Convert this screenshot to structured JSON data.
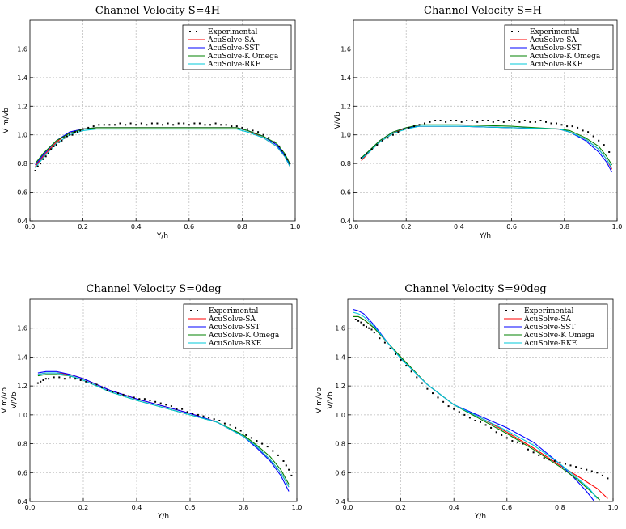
{
  "chart_data": [
    {
      "type": "line",
      "title": "Channel Velocity S=4H",
      "xlabel": "Y/h",
      "ylabel": "V m/vb",
      "xlim": [
        0,
        1.0
      ],
      "ylim": [
        0.4,
        1.8
      ],
      "xticks": [
        "0.0",
        "0.2",
        "0.4",
        "0.6",
        "0.8",
        "1.0"
      ],
      "yticks": [
        "0.4",
        "0.6",
        "0.8",
        "1.0",
        "1.2",
        "1.4",
        "1.6"
      ],
      "grid": true,
      "legend_position": "top-right",
      "experimental": {
        "name": "Experimental",
        "x": [
          0.02,
          0.03,
          0.04,
          0.05,
          0.06,
          0.07,
          0.08,
          0.09,
          0.1,
          0.11,
          0.12,
          0.13,
          0.14,
          0.15,
          0.16,
          0.17,
          0.18,
          0.19,
          0.2,
          0.22,
          0.24,
          0.26,
          0.28,
          0.3,
          0.32,
          0.34,
          0.36,
          0.38,
          0.4,
          0.42,
          0.44,
          0.46,
          0.48,
          0.5,
          0.52,
          0.54,
          0.56,
          0.58,
          0.6,
          0.62,
          0.64,
          0.66,
          0.68,
          0.7,
          0.72,
          0.74,
          0.76,
          0.78,
          0.8,
          0.82,
          0.84,
          0.86,
          0.88,
          0.9,
          0.92,
          0.94,
          0.95,
          0.96,
          0.97,
          0.98
        ],
        "y": [
          0.75,
          0.78,
          0.8,
          0.83,
          0.85,
          0.87,
          0.9,
          0.92,
          0.93,
          0.95,
          0.96,
          0.98,
          0.99,
          1.0,
          1.0,
          1.02,
          1.02,
          1.03,
          1.04,
          1.05,
          1.06,
          1.07,
          1.07,
          1.07,
          1.07,
          1.08,
          1.07,
          1.08,
          1.07,
          1.08,
          1.07,
          1.08,
          1.08,
          1.07,
          1.08,
          1.07,
          1.08,
          1.08,
          1.07,
          1.08,
          1.08,
          1.07,
          1.07,
          1.08,
          1.07,
          1.07,
          1.06,
          1.06,
          1.05,
          1.04,
          1.03,
          1.02,
          1.0,
          0.98,
          0.95,
          0.92,
          0.89,
          0.86,
          0.83,
          0.8
        ]
      },
      "series": [
        {
          "name": "AcuSolve-SA",
          "color": "#ff0000",
          "x": [
            0.02,
            0.05,
            0.1,
            0.15,
            0.2,
            0.25,
            0.4,
            0.6,
            0.78,
            0.82,
            0.88,
            0.93,
            0.96,
            0.98
          ],
          "y": [
            0.78,
            0.85,
            0.95,
            1.02,
            1.04,
            1.05,
            1.05,
            1.05,
            1.05,
            1.03,
            0.98,
            0.92,
            0.85,
            0.78
          ]
        },
        {
          "name": "AcuSolve-SST",
          "color": "#0000ff",
          "x": [
            0.02,
            0.05,
            0.1,
            0.15,
            0.2,
            0.25,
            0.4,
            0.6,
            0.78,
            0.82,
            0.88,
            0.93,
            0.96,
            0.98
          ],
          "y": [
            0.79,
            0.86,
            0.96,
            1.02,
            1.04,
            1.05,
            1.05,
            1.05,
            1.05,
            1.03,
            0.99,
            0.93,
            0.86,
            0.79
          ]
        },
        {
          "name": "AcuSolve-K Omega",
          "color": "#008000",
          "x": [
            0.02,
            0.05,
            0.1,
            0.15,
            0.2,
            0.25,
            0.4,
            0.6,
            0.78,
            0.82,
            0.88,
            0.93,
            0.96,
            0.98
          ],
          "y": [
            0.8,
            0.87,
            0.96,
            1.01,
            1.04,
            1.05,
            1.05,
            1.05,
            1.05,
            1.03,
            0.99,
            0.94,
            0.87,
            0.8
          ]
        },
        {
          "name": "AcuSolve-RKE",
          "color": "#00c8d8",
          "x": [
            0.02,
            0.05,
            0.1,
            0.15,
            0.2,
            0.25,
            0.4,
            0.6,
            0.78,
            0.82,
            0.88,
            0.93,
            0.96,
            0.98
          ],
          "y": [
            0.77,
            0.84,
            0.94,
            1.0,
            1.03,
            1.04,
            1.04,
            1.04,
            1.04,
            1.02,
            0.98,
            0.92,
            0.85,
            0.78
          ]
        }
      ]
    },
    {
      "type": "line",
      "title": "Channel Velocity S=H",
      "xlabel": "Y/h",
      "ylabel": "V/Vb",
      "xlim": [
        0,
        1.0
      ],
      "ylim": [
        0.4,
        1.8
      ],
      "xticks": [
        "0.0",
        "0.2",
        "0.4",
        "0.6",
        "0.8",
        "1.0"
      ],
      "yticks": [
        "0.4",
        "0.6",
        "0.8",
        "1.0",
        "1.2",
        "1.4",
        "1.6"
      ],
      "grid": true,
      "legend_position": "top-right",
      "experimental": {
        "name": "Experimental",
        "x": [
          0.03,
          0.05,
          0.07,
          0.09,
          0.11,
          0.13,
          0.15,
          0.17,
          0.19,
          0.21,
          0.23,
          0.25,
          0.27,
          0.29,
          0.31,
          0.33,
          0.35,
          0.37,
          0.39,
          0.41,
          0.43,
          0.45,
          0.47,
          0.49,
          0.51,
          0.53,
          0.55,
          0.57,
          0.59,
          0.61,
          0.63,
          0.65,
          0.67,
          0.69,
          0.71,
          0.73,
          0.75,
          0.77,
          0.79,
          0.81,
          0.83,
          0.85,
          0.87,
          0.89,
          0.91,
          0.93,
          0.95,
          0.97
        ],
        "y": [
          0.84,
          0.87,
          0.9,
          0.93,
          0.96,
          0.98,
          1.0,
          1.02,
          1.04,
          1.05,
          1.06,
          1.07,
          1.08,
          1.09,
          1.1,
          1.1,
          1.09,
          1.1,
          1.1,
          1.09,
          1.1,
          1.1,
          1.09,
          1.1,
          1.1,
          1.09,
          1.1,
          1.09,
          1.1,
          1.1,
          1.09,
          1.1,
          1.09,
          1.09,
          1.1,
          1.09,
          1.08,
          1.08,
          1.07,
          1.06,
          1.06,
          1.05,
          1.03,
          1.02,
          0.99,
          0.96,
          0.93,
          0.88
        ]
      },
      "series": [
        {
          "name": "AcuSolve-SA",
          "color": "#ff0000",
          "x": [
            0.03,
            0.06,
            0.1,
            0.15,
            0.2,
            0.25,
            0.4,
            0.6,
            0.78,
            0.82,
            0.88,
            0.93,
            0.96,
            0.98
          ],
          "y": [
            0.82,
            0.88,
            0.95,
            1.01,
            1.05,
            1.06,
            1.06,
            1.05,
            1.04,
            1.02,
            0.97,
            0.9,
            0.83,
            0.76
          ]
        },
        {
          "name": "AcuSolve-SST",
          "color": "#0000ff",
          "x": [
            0.03,
            0.06,
            0.1,
            0.15,
            0.2,
            0.25,
            0.4,
            0.6,
            0.78,
            0.82,
            0.88,
            0.93,
            0.96,
            0.98
          ],
          "y": [
            0.83,
            0.89,
            0.96,
            1.02,
            1.05,
            1.06,
            1.06,
            1.05,
            1.04,
            1.02,
            0.96,
            0.88,
            0.81,
            0.74
          ]
        },
        {
          "name": "AcuSolve-K Omega",
          "color": "#008000",
          "x": [
            0.03,
            0.06,
            0.1,
            0.15,
            0.2,
            0.25,
            0.4,
            0.6,
            0.78,
            0.82,
            0.88,
            0.93,
            0.96,
            0.98
          ],
          "y": [
            0.84,
            0.89,
            0.96,
            1.02,
            1.05,
            1.07,
            1.07,
            1.06,
            1.04,
            1.03,
            0.98,
            0.92,
            0.85,
            0.79
          ]
        },
        {
          "name": "AcuSolve-RKE",
          "color": "#00c8d8",
          "x": [
            0.03,
            0.06,
            0.1,
            0.15,
            0.2,
            0.25,
            0.4,
            0.6,
            0.78,
            0.82,
            0.88,
            0.93,
            0.96,
            0.98
          ],
          "y": [
            0.83,
            0.88,
            0.95,
            1.01,
            1.04,
            1.06,
            1.06,
            1.05,
            1.04,
            1.02,
            0.97,
            0.9,
            0.83,
            0.77
          ]
        }
      ]
    },
    {
      "type": "line",
      "title": "Channel Velocity S=0deg",
      "xlabel": "Y/h",
      "ylabel": "V m/vb",
      "ylabel2": "V/Vb",
      "xlim": [
        0,
        1.0
      ],
      "ylim": [
        0.4,
        1.8
      ],
      "xticks": [
        "0.0",
        "0.2",
        "0.4",
        "0.6",
        "0.8",
        "1.0"
      ],
      "yticks": [
        "0.4",
        "0.6",
        "0.8",
        "1.0",
        "1.2",
        "1.4",
        "1.6"
      ],
      "grid": true,
      "legend_position": "top-right",
      "experimental": {
        "name": "Experimental",
        "x": [
          0.03,
          0.04,
          0.05,
          0.06,
          0.07,
          0.09,
          0.11,
          0.13,
          0.15,
          0.17,
          0.19,
          0.21,
          0.23,
          0.25,
          0.27,
          0.29,
          0.31,
          0.33,
          0.35,
          0.37,
          0.39,
          0.41,
          0.43,
          0.45,
          0.47,
          0.49,
          0.51,
          0.53,
          0.55,
          0.57,
          0.59,
          0.61,
          0.63,
          0.65,
          0.67,
          0.69,
          0.71,
          0.73,
          0.75,
          0.77,
          0.79,
          0.81,
          0.83,
          0.85,
          0.87,
          0.89,
          0.91,
          0.93,
          0.95,
          0.96,
          0.97,
          0.98
        ],
        "y": [
          1.22,
          1.23,
          1.24,
          1.25,
          1.25,
          1.26,
          1.26,
          1.25,
          1.26,
          1.25,
          1.24,
          1.23,
          1.22,
          1.21,
          1.19,
          1.17,
          1.16,
          1.15,
          1.14,
          1.13,
          1.12,
          1.11,
          1.11,
          1.1,
          1.09,
          1.08,
          1.07,
          1.06,
          1.04,
          1.04,
          1.02,
          1.01,
          1.0,
          0.99,
          0.98,
          0.97,
          0.96,
          0.94,
          0.93,
          0.91,
          0.89,
          0.86,
          0.84,
          0.82,
          0.8,
          0.78,
          0.75,
          0.72,
          0.68,
          0.65,
          0.62,
          0.58
        ]
      },
      "series": [
        {
          "name": "AcuSolve-SA",
          "color": "#ff0000",
          "x": [
            0.03,
            0.06,
            0.1,
            0.15,
            0.2,
            0.3,
            0.4,
            0.5,
            0.6,
            0.7,
            0.8,
            0.85,
            0.9,
            0.94,
            0.97
          ],
          "y": [
            1.28,
            1.29,
            1.29,
            1.28,
            1.25,
            1.17,
            1.11,
            1.06,
            1.01,
            0.95,
            0.85,
            0.78,
            0.69,
            0.6,
            0.5
          ]
        },
        {
          "name": "AcuSolve-SST",
          "color": "#0000ff",
          "x": [
            0.03,
            0.06,
            0.1,
            0.15,
            0.2,
            0.3,
            0.4,
            0.5,
            0.6,
            0.7,
            0.8,
            0.85,
            0.9,
            0.94,
            0.97
          ],
          "y": [
            1.29,
            1.3,
            1.3,
            1.28,
            1.25,
            1.17,
            1.11,
            1.06,
            1.01,
            0.95,
            0.85,
            0.77,
            0.68,
            0.58,
            0.47
          ]
        },
        {
          "name": "AcuSolve-K Omega",
          "color": "#008000",
          "x": [
            0.03,
            0.06,
            0.1,
            0.15,
            0.2,
            0.3,
            0.4,
            0.5,
            0.6,
            0.7,
            0.8,
            0.85,
            0.9,
            0.94,
            0.97
          ],
          "y": [
            1.27,
            1.28,
            1.28,
            1.27,
            1.24,
            1.16,
            1.1,
            1.05,
            1.0,
            0.95,
            0.86,
            0.79,
            0.71,
            0.62,
            0.52
          ]
        },
        {
          "name": "AcuSolve-RKE",
          "color": "#00c8d8",
          "x": [
            0.03,
            0.06,
            0.1,
            0.15,
            0.2,
            0.3,
            0.4,
            0.5,
            0.6,
            0.7,
            0.8,
            0.85,
            0.9,
            0.94,
            0.97
          ],
          "y": [
            1.28,
            1.29,
            1.29,
            1.27,
            1.24,
            1.16,
            1.1,
            1.05,
            1.0,
            0.95,
            0.85,
            0.78,
            0.69,
            0.6,
            0.5
          ]
        }
      ]
    },
    {
      "type": "line",
      "title": "Channel Velocity S=90deg",
      "xlabel": "Y/h",
      "ylabel": "V m/vb",
      "ylabel2": "V/Vb",
      "xlim": [
        0,
        1.0
      ],
      "ylim": [
        0.4,
        1.8
      ],
      "xticks": [
        "0.0",
        "0.2",
        "0.4",
        "0.6",
        "0.8",
        "1.0"
      ],
      "yticks": [
        "0.4",
        "0.6",
        "0.8",
        "1.0",
        "1.2",
        "1.4",
        "1.6"
      ],
      "grid": true,
      "legend_position": "top-right",
      "experimental": {
        "name": "Experimental",
        "x": [
          0.03,
          0.04,
          0.05,
          0.06,
          0.07,
          0.08,
          0.09,
          0.1,
          0.12,
          0.14,
          0.16,
          0.18,
          0.2,
          0.22,
          0.24,
          0.26,
          0.28,
          0.3,
          0.32,
          0.34,
          0.36,
          0.38,
          0.4,
          0.42,
          0.44,
          0.46,
          0.48,
          0.5,
          0.52,
          0.54,
          0.56,
          0.58,
          0.6,
          0.62,
          0.64,
          0.66,
          0.68,
          0.7,
          0.72,
          0.74,
          0.76,
          0.78,
          0.8,
          0.82,
          0.84,
          0.86,
          0.88,
          0.9,
          0.92,
          0.94,
          0.96,
          0.98
        ],
        "y": [
          1.66,
          1.65,
          1.64,
          1.62,
          1.61,
          1.6,
          1.59,
          1.57,
          1.53,
          1.5,
          1.46,
          1.42,
          1.38,
          1.34,
          1.3,
          1.26,
          1.22,
          1.18,
          1.15,
          1.12,
          1.09,
          1.06,
          1.04,
          1.02,
          1.0,
          0.98,
          0.96,
          0.95,
          0.93,
          0.91,
          0.88,
          0.86,
          0.84,
          0.82,
          0.81,
          0.8,
          0.76,
          0.74,
          0.72,
          0.7,
          0.69,
          0.68,
          0.67,
          0.66,
          0.65,
          0.64,
          0.63,
          0.62,
          0.61,
          0.6,
          0.58,
          0.56
        ]
      },
      "series": [
        {
          "name": "AcuSolve-SA",
          "color": "#ff0000",
          "x": [
            0.02,
            0.04,
            0.06,
            0.1,
            0.15,
            0.2,
            0.3,
            0.4,
            0.5,
            0.6,
            0.7,
            0.8,
            0.88,
            0.94,
            0.98
          ],
          "y": [
            1.68,
            1.68,
            1.66,
            1.6,
            1.5,
            1.4,
            1.21,
            1.07,
            0.98,
            0.88,
            0.77,
            0.65,
            0.56,
            0.49,
            0.42
          ]
        },
        {
          "name": "AcuSolve-SST",
          "color": "#0000ff",
          "x": [
            0.02,
            0.04,
            0.06,
            0.1,
            0.15,
            0.2,
            0.3,
            0.4,
            0.5,
            0.6,
            0.7,
            0.8,
            0.85,
            0.9,
            0.93
          ],
          "y": [
            1.73,
            1.72,
            1.7,
            1.62,
            1.5,
            1.39,
            1.21,
            1.07,
            0.99,
            0.91,
            0.81,
            0.66,
            0.57,
            0.47,
            0.4
          ]
        },
        {
          "name": "AcuSolve-K Omega",
          "color": "#008000",
          "x": [
            0.02,
            0.04,
            0.06,
            0.1,
            0.15,
            0.2,
            0.3,
            0.4,
            0.5,
            0.6,
            0.7,
            0.8,
            0.86,
            0.91,
            0.95
          ],
          "y": [
            1.68,
            1.68,
            1.66,
            1.6,
            1.5,
            1.4,
            1.21,
            1.07,
            0.97,
            0.87,
            0.76,
            0.64,
            0.56,
            0.48,
            0.41
          ]
        },
        {
          "name": "AcuSolve-RKE",
          "color": "#00c8d8",
          "x": [
            0.02,
            0.04,
            0.06,
            0.1,
            0.15,
            0.2,
            0.3,
            0.4,
            0.5,
            0.6,
            0.7,
            0.8,
            0.86,
            0.91,
            0.94
          ],
          "y": [
            1.71,
            1.7,
            1.68,
            1.61,
            1.5,
            1.39,
            1.21,
            1.07,
            0.98,
            0.89,
            0.79,
            0.66,
            0.57,
            0.49,
            0.42
          ]
        }
      ]
    }
  ]
}
